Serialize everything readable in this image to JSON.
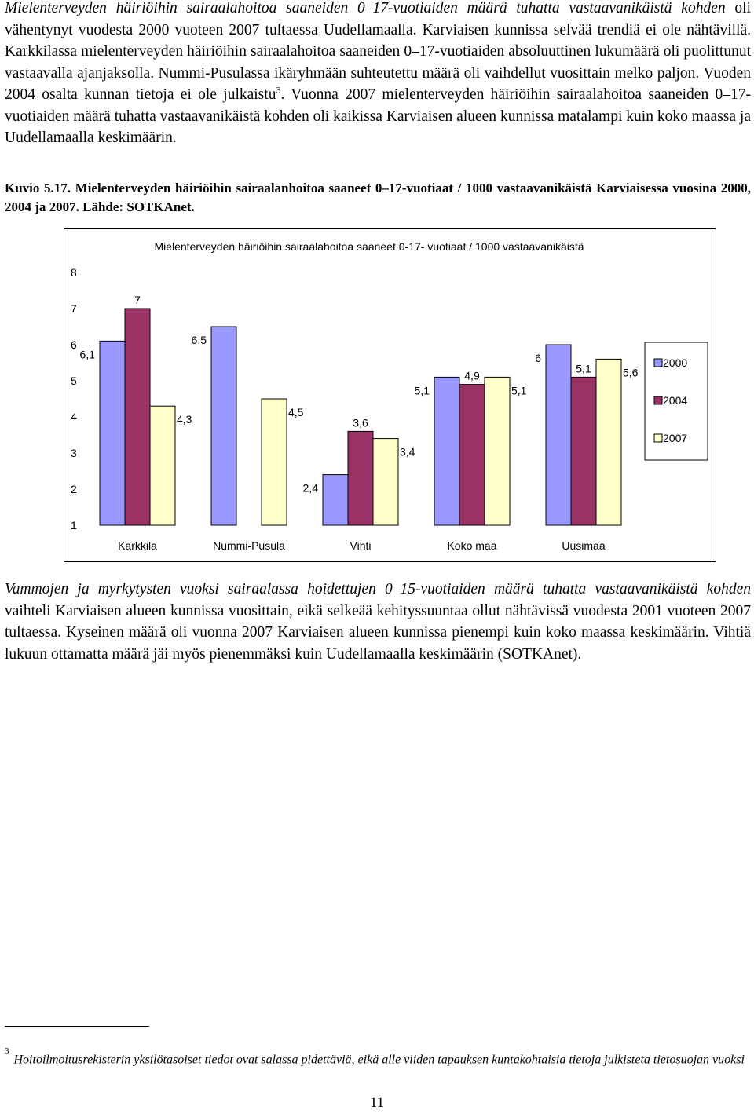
{
  "paragraph1": {
    "italic_lead": "Mielenterveyden häiriöihin sairaalahoitoa saaneiden 0–17-vuotiaiden määrä tuhatta vastaavanikäistä kohden",
    "text_a": " oli vähentynyt vuodesta 2000 vuoteen 2007 tultaessa Uudellamaalla. Karviaisen kunnissa selvää trendiä ei ole nähtävillä. Karkkilassa mielenterveyden häiriöihin sairaalahoitoa saaneiden 0–17-vuotiaiden absoluuttinen lukumäärä oli puolittunut vastaavalla ajanjaksolla. Nummi-Pusulassa ikäryhmään suhteutettu määrä oli vaihdellut vuosittain melko paljon. Vuoden 2004 osalta kunnan tietoja ei ole julkaistu",
    "footnote_ref": "3",
    "text_b": ". Vuonna 2007 mielenterveyden häiriöihin sairaalahoitoa saaneiden 0–17-vuotiaiden määrä tuhatta vastaavanikäistä kohden oli kaikissa Karviaisen alueen kunnissa matalampi kuin koko maassa ja Uudellamaalla keskimäärin."
  },
  "caption": "Kuvio 5.17. Mielenterveyden häiriöihin sairaalanhoitoa saaneet 0–17-vuotiaat / 1000 vastaavanikäistä Karviaisessa vuosina 2000, 2004 ja 2007. Lähde: SOTKAnet.",
  "chart_data": {
    "type": "bar",
    "title": "Mielenterveyden häiriöihin sairaalahoitoa saaneet 0-17- vuotiaat / 1000 vastaavanikäistä",
    "categories": [
      "Karkkila",
      "Nummi-Pusula",
      "Vihti",
      "Koko maa",
      "Uusimaa"
    ],
    "series": [
      {
        "name": "2000",
        "color": "#9999ff",
        "values": [
          6.1,
          6.5,
          2.4,
          5.1,
          6.0
        ],
        "labels": [
          "6,1",
          "6,5",
          "2,4",
          "5,1",
          "6"
        ]
      },
      {
        "name": "2004",
        "color": "#993366",
        "values": [
          7.0,
          null,
          3.6,
          4.9,
          5.1
        ],
        "labels": [
          "7",
          "",
          "3,6",
          "4,9",
          "5,1"
        ]
      },
      {
        "name": "2007",
        "color": "#ffffcc",
        "values": [
          4.3,
          4.5,
          3.4,
          5.1,
          5.6
        ],
        "labels": [
          "4,3",
          "4,5",
          "3,4",
          "5,1",
          "5,6"
        ]
      }
    ],
    "yticks": [
      "1",
      "2",
      "3",
      "4",
      "5",
      "6",
      "7",
      "8"
    ],
    "ylim": [
      1,
      8
    ],
    "legend_position": "right",
    "grid": false
  },
  "paragraph2": {
    "italic_lead": "Vammojen ja myrkytysten vuoksi sairaalassa hoidettujen 0–15-vuotiaiden määrä tuhatta vastaavanikäistä kohden",
    "text": " vaihteli Karviaisen alueen kunnissa vuosittain, eikä selkeää kehityssuuntaa ollut nähtävissä vuodesta 2001 vuoteen 2007 tultaessa. Kyseinen määrä oli vuonna 2007 Karviaisen alueen kunnissa pienempi kuin koko maassa keskimäärin. Vihtiä lukuun ottamatta määrä jäi myös pienemmäksi kuin Uudellamaalla keskimäärin (SOTKAnet)."
  },
  "footnote": {
    "number": "3",
    "text": "Hoitoilmoitusrekisterin yksilötasoiset tiedot ovat salassa pidettäviä, eikä alle viiden tapauksen kuntakohtaisia tietoja julkisteta tietosuojan vuoksi"
  },
  "page_number": "11"
}
